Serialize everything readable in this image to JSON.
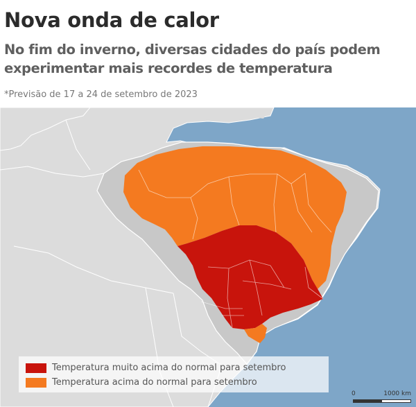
{
  "header": {
    "title": "Nova onda de calor",
    "subtitle": "No fim do inverno, diversas cidades do país podem experimentar mais recordes de temperatura",
    "note": "*Previsão de 17 a 24 de setembro de 2023"
  },
  "legend": {
    "items": [
      {
        "label": "Temperatura muito acima do normal para setembro",
        "color": "#c8140c"
      },
      {
        "label": "Temperatura acima do normal para setembro",
        "color": "#f47a20"
      }
    ]
  },
  "scale_bar": {
    "zero": "0",
    "max": "1000 km"
  },
  "colors": {
    "ocean": "#7ea6c8",
    "land": "#dcdcdc",
    "brazil": "#c8c8c8",
    "borders": "#ffffff"
  }
}
